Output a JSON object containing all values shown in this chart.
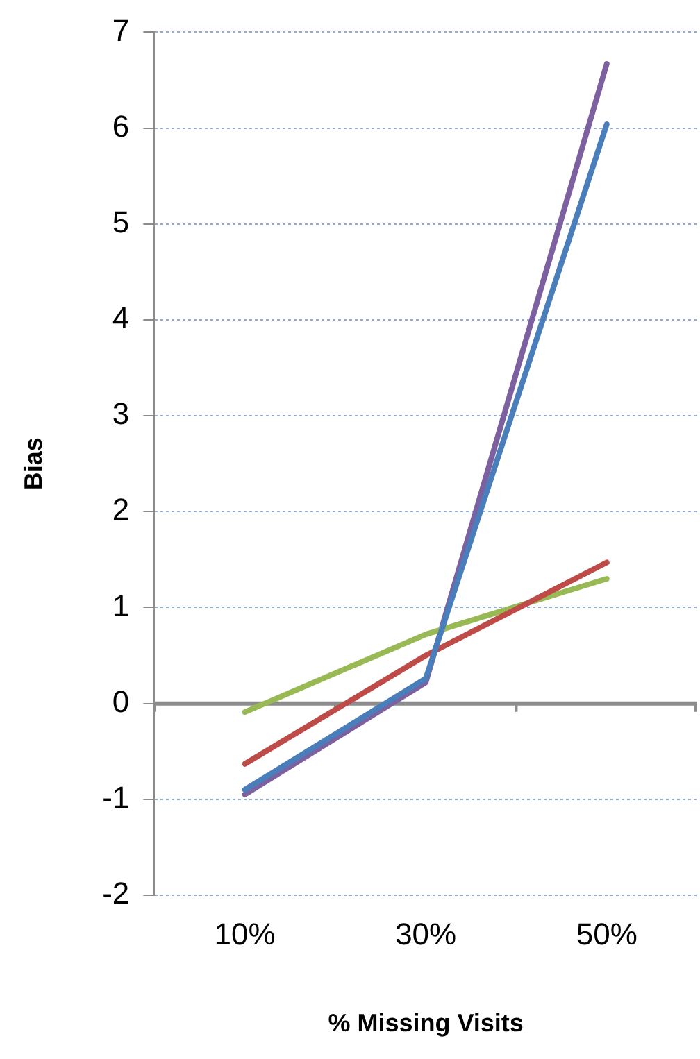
{
  "chart_data": {
    "type": "line",
    "xlabel": "% Missing Visits",
    "ylabel": "Bias",
    "categories": [
      "10%",
      "30%",
      "50%"
    ],
    "series": [
      {
        "color": "#4a7ebb",
        "values": [
          -0.9,
          0.26,
          6.04
        ]
      },
      {
        "color": "#be4b48",
        "values": [
          -0.63,
          0.5,
          1.47
        ]
      },
      {
        "color": "#98b954",
        "values": [
          -0.09,
          0.72,
          1.3
        ]
      },
      {
        "color": "#7d60a0",
        "values": [
          -0.95,
          0.22,
          6.67
        ]
      }
    ],
    "ylim": [
      -2,
      7
    ],
    "yticks": [
      -2,
      -1,
      0,
      1,
      2,
      3,
      4,
      5,
      6,
      7
    ],
    "grid": "y",
    "ref_lines": [
      {
        "axis": "y",
        "value": 0,
        "color": "#8c8c8c"
      }
    ],
    "marker": "none",
    "line_style": "solid",
    "legend": false
  }
}
